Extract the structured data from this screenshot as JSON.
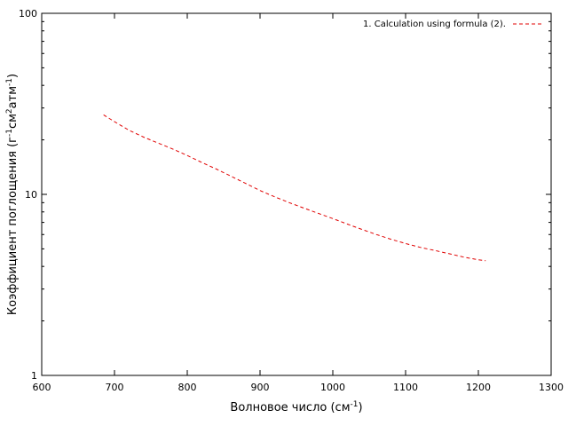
{
  "chart_data": {
    "type": "line",
    "xscale": "linear",
    "yscale": "log",
    "xlim": [
      600,
      1300
    ],
    "ylim": [
      1,
      100
    ],
    "grid": false,
    "legend_position": "top-right",
    "x_ticks": [
      600,
      700,
      800,
      900,
      1000,
      1100,
      1200,
      1300
    ],
    "y_ticks": [
      1,
      10,
      100
    ],
    "xlabel": {
      "main": "Волновое число (см",
      "sup": "-1",
      "tail": ")"
    },
    "ylabel": {
      "p1": "Коэффициент поглощения (г",
      "s1": "-1",
      "p2": "см",
      "s2": "2",
      "p3": "атм",
      "s3": "-1",
      "p4": ")"
    },
    "series": [
      {
        "name": "1. Calculation using formula (2).",
        "color": "#e00000",
        "dash": "dashed",
        "x": [
          685,
          700,
          720,
          740,
          760,
          780,
          800,
          820,
          840,
          860,
          880,
          900,
          920,
          940,
          960,
          980,
          1000,
          1020,
          1040,
          1060,
          1080,
          1100,
          1120,
          1140,
          1160,
          1180,
          1200,
          1210
        ],
        "y": [
          27.5,
          25.2,
          22.6,
          20.7,
          19.2,
          17.8,
          16.4,
          15.0,
          13.8,
          12.6,
          11.5,
          10.5,
          9.7,
          9.0,
          8.4,
          7.85,
          7.35,
          6.85,
          6.4,
          6.0,
          5.65,
          5.35,
          5.1,
          4.9,
          4.7,
          4.5,
          4.35,
          4.3
        ]
      }
    ]
  }
}
